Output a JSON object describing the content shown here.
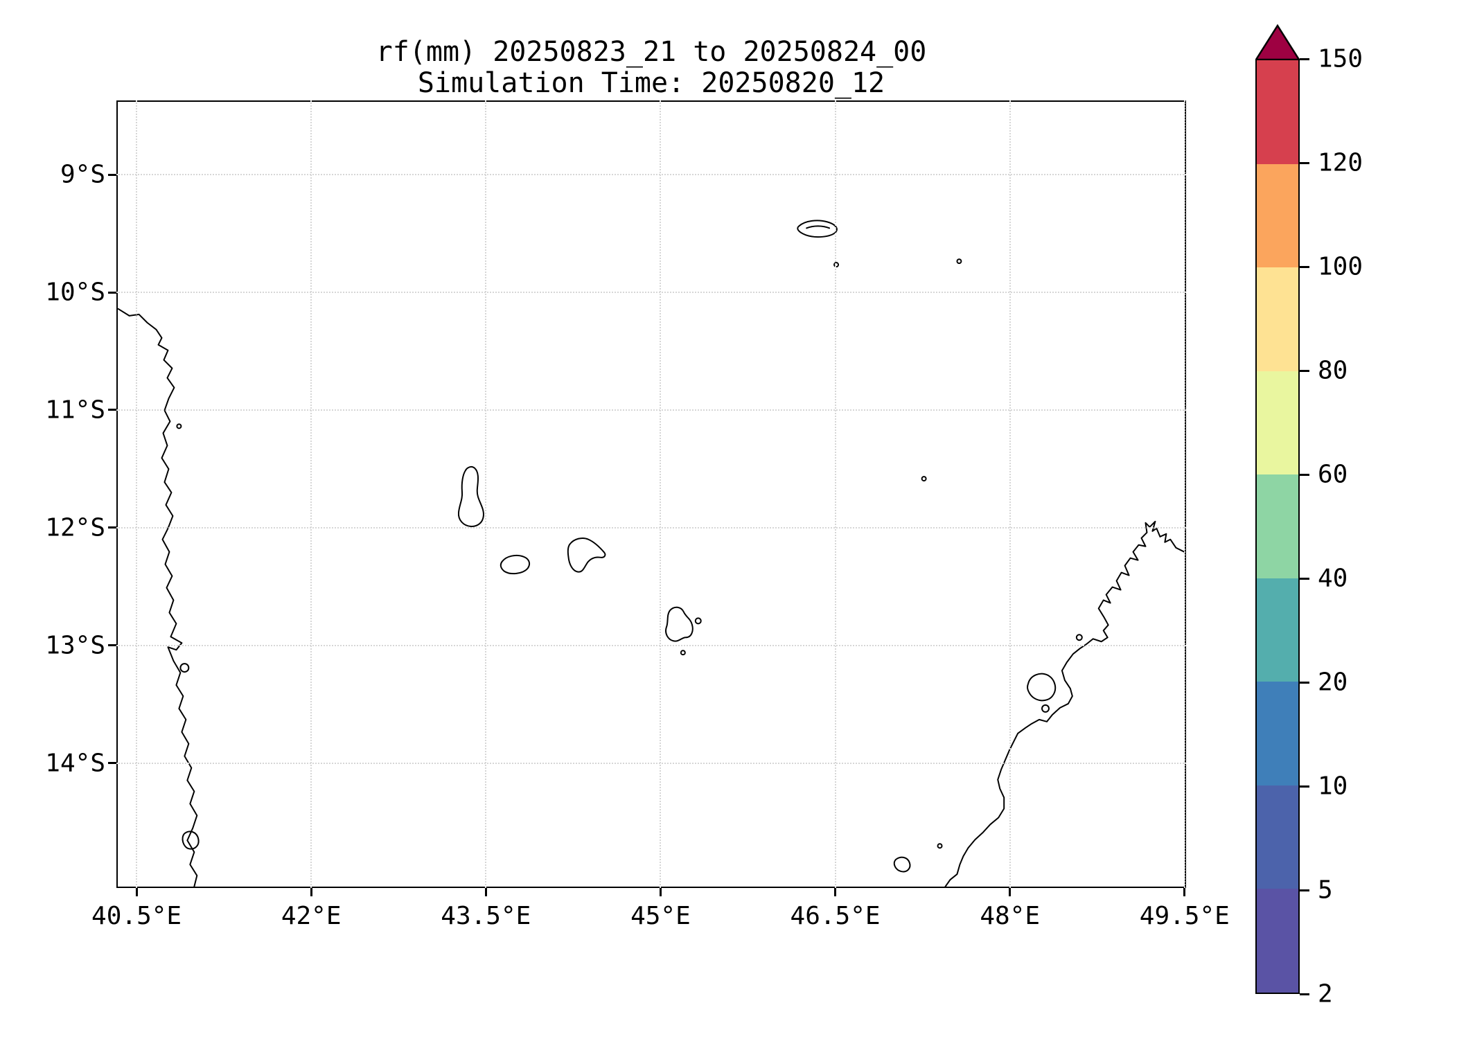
{
  "chart_data": {
    "type": "map",
    "title": "rf(mm) 20250823_21 to 20250824_00",
    "subtitle": "Simulation Time: 20250820_12",
    "variable": "rf",
    "units": "mm",
    "data_note": "no shaded rainfall values visible on map (all below lowest contour level 2 mm)",
    "extent": {
      "lon_min": 40.327,
      "lon_max": 49.513,
      "lat_min": -15.06,
      "lat_max": -8.37
    },
    "x_axis": {
      "values": [
        40.5,
        42,
        43.5,
        45,
        46.5,
        48,
        49.5
      ],
      "labels": [
        "40.5°E",
        "42°E",
        "43.5°E",
        "45°E",
        "46.5°E",
        "48°E",
        "49.5°E"
      ]
    },
    "y_axis": {
      "values": [
        -9,
        -10,
        -11,
        -12,
        -13,
        -14
      ],
      "labels": [
        "9°S",
        "10°S",
        "11°S",
        "12°S",
        "13°S",
        "14°S"
      ]
    },
    "grid": true,
    "colorbar": {
      "levels": [
        2,
        5,
        10,
        20,
        40,
        60,
        80,
        100,
        120,
        150
      ],
      "tick_labels": [
        "150",
        "120",
        "100",
        "80",
        "60",
        "40",
        "20",
        "10",
        "5",
        "2"
      ],
      "colors_low_to_high": [
        "#5a53a5",
        "#4c63ab",
        "#3f7fb9",
        "#54aead",
        "#8ed5a4",
        "#e9f69f",
        "#fee293",
        "#fba55d",
        "#d6404e"
      ],
      "over_color": "#9e0142",
      "extend": "max",
      "position": "right"
    },
    "features": [
      "africa-east-coast",
      "grande-comore",
      "moheli",
      "anjouan",
      "mayotte",
      "aldabra-atoll",
      "outer-island-specks",
      "glorioso-speck",
      "madagascar-north-coast",
      "nosy-be",
      "coastal-islets"
    ]
  }
}
